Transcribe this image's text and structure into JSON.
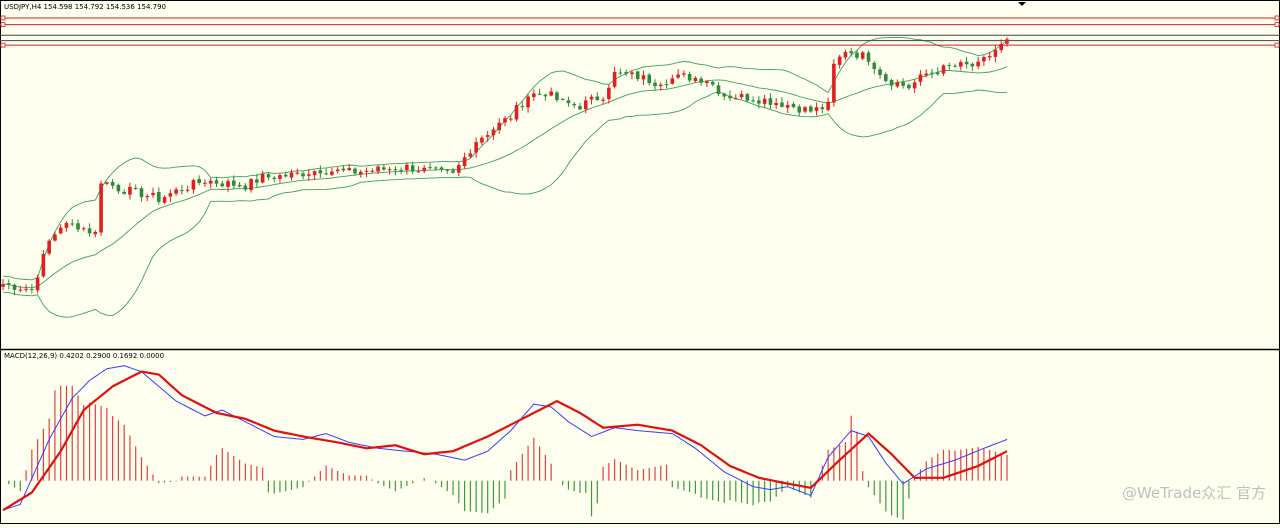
{
  "price_pane": {
    "header": "USDJPY,H4  154.598 154.792 154.536 154.790"
  },
  "macd_pane": {
    "header": "MACD(12,26,9) 0.4202 0.2900 0.1692 0.0000"
  },
  "watermark": {
    "text": "@WeTrade众汇 官方"
  },
  "colors": {
    "background": "#fffff0",
    "bull_candle": "#e02020",
    "bear_candle": "#2f8a3a",
    "bands": "#3aa35a",
    "h_lines": "#d42020",
    "h_lines_dark": "#444444",
    "macd_line": "#3a3aff",
    "signal_line": "#e01010",
    "hist_pos": "#e04040",
    "hist_neg": "#3a9a3a"
  },
  "chart_data": [
    {
      "type": "candlestick",
      "symbol": "USDJPY",
      "timeframe": "H4",
      "ylim": [
        142.6,
        155.6
      ],
      "candle_count": 175,
      "price_path": [
        [
          0,
          145.0
        ],
        [
          5,
          144.8
        ],
        [
          6,
          145.4
        ],
        [
          8,
          146.6
        ],
        [
          10,
          147.2
        ],
        [
          13,
          147.2
        ],
        [
          15,
          147.0
        ],
        [
          16,
          146.9
        ],
        [
          17,
          148.9
        ],
        [
          20,
          148.6
        ],
        [
          24,
          148.4
        ],
        [
          27,
          148.2
        ],
        [
          30,
          148.5
        ],
        [
          35,
          148.9
        ],
        [
          38,
          148.8
        ],
        [
          42,
          148.7
        ],
        [
          45,
          149.0
        ],
        [
          50,
          149.1
        ],
        [
          55,
          149.3
        ],
        [
          60,
          149.2
        ],
        [
          65,
          149.3
        ],
        [
          70,
          149.4
        ],
        [
          75,
          149.2
        ],
        [
          78,
          149.1
        ],
        [
          82,
          150.4
        ],
        [
          88,
          151.3
        ],
        [
          91,
          152.1
        ],
        [
          94,
          152.2
        ],
        [
          97,
          151.8
        ],
        [
          100,
          151.7
        ],
        [
          104,
          152.1
        ],
        [
          106,
          152.9
        ],
        [
          110,
          152.8
        ],
        [
          113,
          152.6
        ],
        [
          118,
          152.8
        ],
        [
          122,
          152.7
        ],
        [
          125,
          152.1
        ],
        [
          130,
          152.0
        ],
        [
          135,
          151.8
        ],
        [
          140,
          151.5
        ],
        [
          143,
          151.7
        ],
        [
          144,
          153.2
        ],
        [
          146,
          153.8
        ],
        [
          150,
          153.5
        ],
        [
          153,
          152.7
        ],
        [
          157,
          152.4
        ],
        [
          160,
          152.9
        ],
        [
          165,
          153.2
        ],
        [
          169,
          153.2
        ],
        [
          172,
          153.8
        ],
        [
          174,
          154.1
        ]
      ],
      "bollinger": {
        "period": 20,
        "deviations": 2
      },
      "horizontal_lines": [
        {
          "level": 155.0,
          "color": "red"
        },
        {
          "level": 154.75,
          "color": "red"
        },
        {
          "level": 154.35,
          "color": "dark"
        },
        {
          "level": 154.15,
          "color": "dark"
        },
        {
          "level": 153.98,
          "color": "red"
        }
      ]
    },
    {
      "type": "line+bar",
      "title": "MACD(12,26,9)",
      "values_printed": [
        0.4202,
        0.29,
        0.1692,
        0.0
      ],
      "ylim": [
        -0.7,
        2.2
      ],
      "series": [
        {
          "name": "MACD",
          "kind": "line",
          "keyframes": [
            [
              0,
              -0.5
            ],
            [
              3,
              -0.4
            ],
            [
              8,
              0.7
            ],
            [
              12,
              1.4
            ],
            [
              15,
              1.7
            ],
            [
              18,
              1.9
            ],
            [
              21,
              1.95
            ],
            [
              24,
              1.85
            ],
            [
              30,
              1.35
            ],
            [
              35,
              1.1
            ],
            [
              38,
              1.2
            ],
            [
              42,
              1.0
            ],
            [
              47,
              0.75
            ],
            [
              52,
              0.7
            ],
            [
              56,
              0.8
            ],
            [
              60,
              0.65
            ],
            [
              65,
              0.55
            ],
            [
              70,
              0.5
            ],
            [
              75,
              0.45
            ],
            [
              80,
              0.35
            ],
            [
              84,
              0.5
            ],
            [
              88,
              0.85
            ],
            [
              92,
              1.3
            ],
            [
              95,
              1.25
            ],
            [
              98,
              1.0
            ],
            [
              102,
              0.75
            ],
            [
              106,
              0.9
            ],
            [
              110,
              0.85
            ],
            [
              116,
              0.8
            ],
            [
              120,
              0.55
            ],
            [
              125,
              0.15
            ],
            [
              130,
              -0.1
            ],
            [
              133,
              -0.15
            ],
            [
              136,
              -0.1
            ],
            [
              140,
              -0.25
            ],
            [
              143,
              0.4
            ],
            [
              147,
              0.85
            ],
            [
              150,
              0.75
            ],
            [
              153,
              0.3
            ],
            [
              156,
              -0.05
            ],
            [
              160,
              0.2
            ],
            [
              165,
              0.35
            ],
            [
              170,
              0.55
            ],
            [
              174,
              0.7
            ]
          ]
        },
        {
          "name": "Signal",
          "kind": "line",
          "keyframes": [
            [
              0,
              -0.5
            ],
            [
              5,
              -0.2
            ],
            [
              10,
              0.5
            ],
            [
              14,
              1.2
            ],
            [
              19,
              1.6
            ],
            [
              24,
              1.85
            ],
            [
              27,
              1.8
            ],
            [
              31,
              1.45
            ],
            [
              37,
              1.15
            ],
            [
              42,
              1.05
            ],
            [
              47,
              0.85
            ],
            [
              52,
              0.75
            ],
            [
              58,
              0.65
            ],
            [
              63,
              0.55
            ],
            [
              68,
              0.6
            ],
            [
              73,
              0.45
            ],
            [
              78,
              0.5
            ],
            [
              84,
              0.75
            ],
            [
              90,
              1.05
            ],
            [
              96,
              1.35
            ],
            [
              100,
              1.15
            ],
            [
              104,
              0.9
            ],
            [
              110,
              0.95
            ],
            [
              116,
              0.85
            ],
            [
              121,
              0.6
            ],
            [
              126,
              0.25
            ],
            [
              131,
              0.05
            ],
            [
              136,
              -0.05
            ],
            [
              140,
              -0.12
            ],
            [
              145,
              0.35
            ],
            [
              150,
              0.8
            ],
            [
              154,
              0.45
            ],
            [
              158,
              0.05
            ],
            [
              163,
              0.05
            ],
            [
              169,
              0.25
            ],
            [
              174,
              0.5
            ]
          ]
        },
        {
          "name": "Histogram",
          "kind": "bar",
          "derived_from": "MACD - Signal"
        }
      ]
    }
  ]
}
